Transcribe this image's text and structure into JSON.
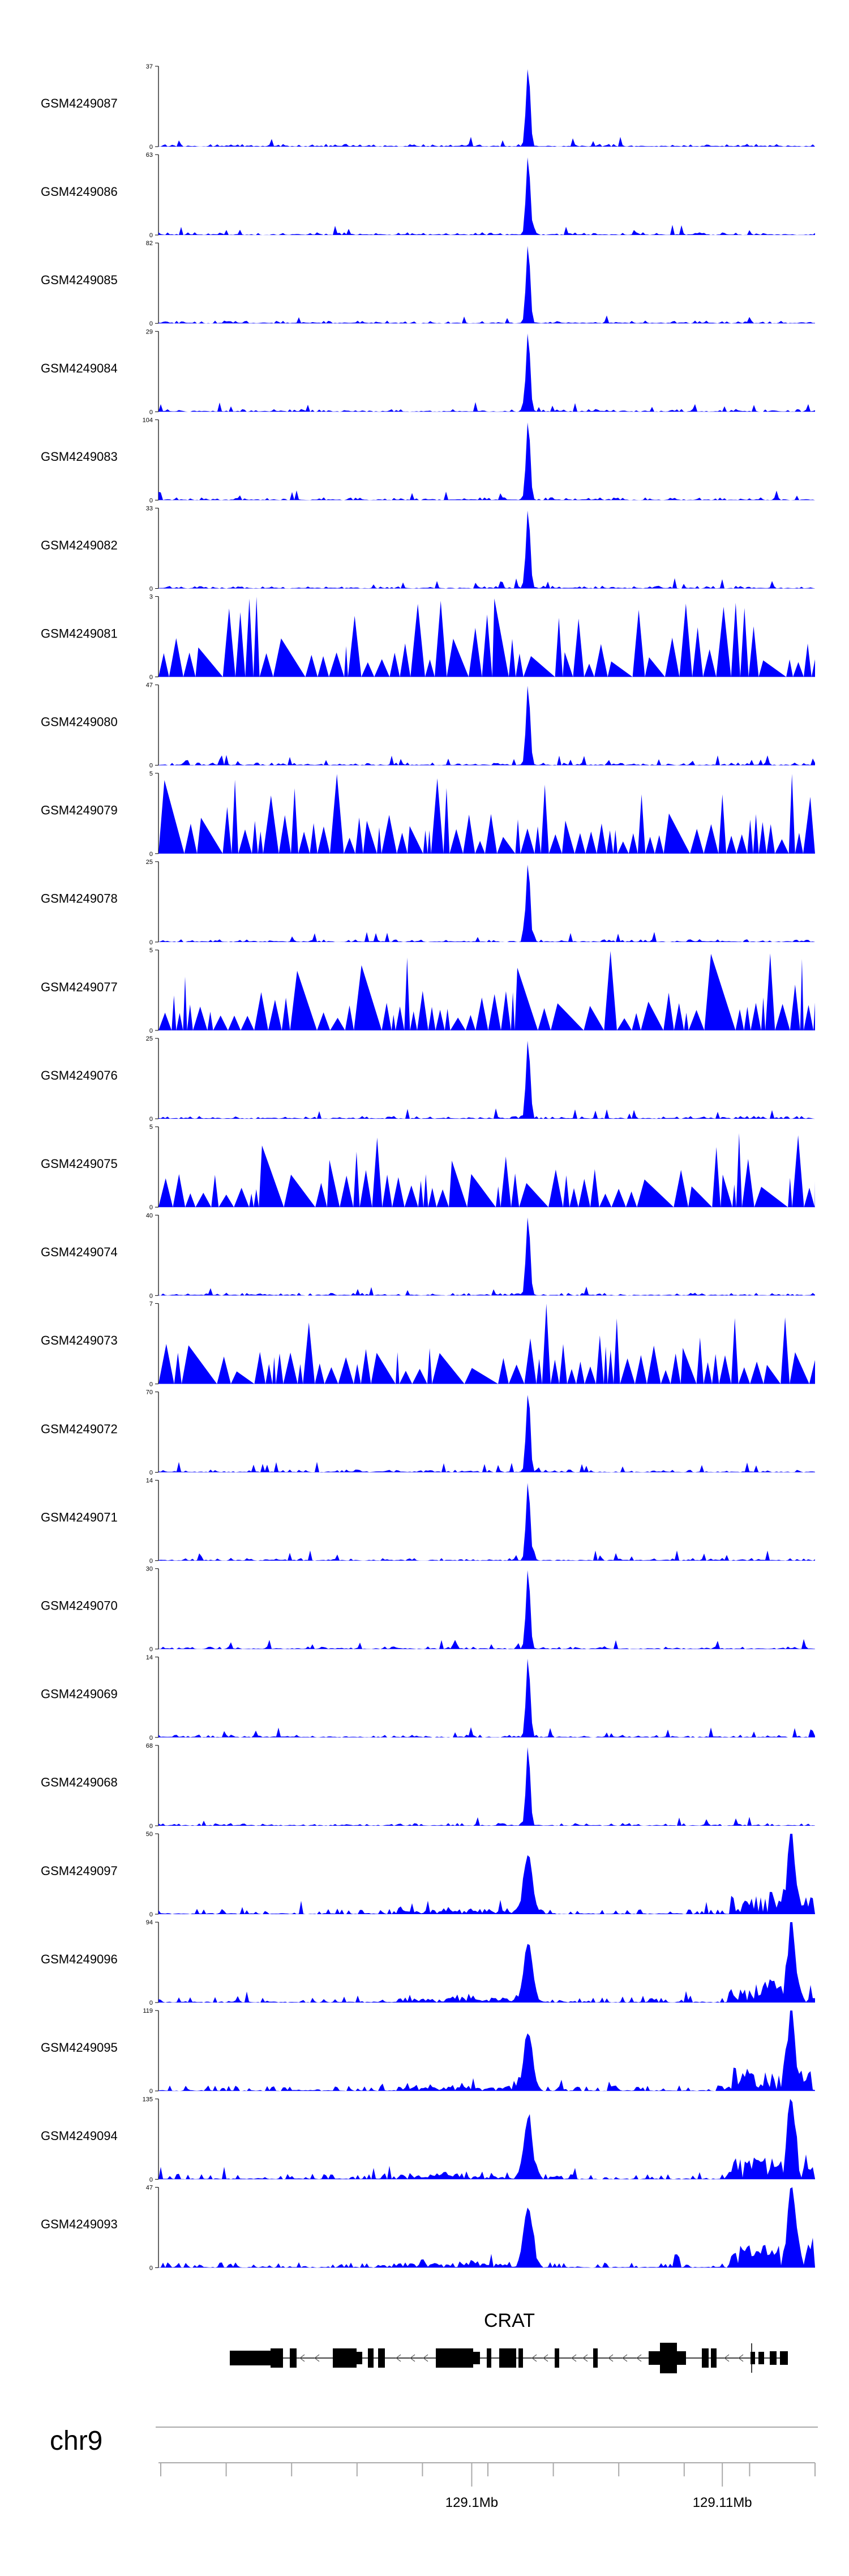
{
  "chart_data": {
    "type": "area",
    "genome_region": {
      "chromosome": "chr9",
      "start_mb": 129.0875,
      "end_mb": 129.1137,
      "axis_ticks": [
        {
          "value_mb": 129.1,
          "label": "129.1Mb"
        },
        {
          "value_mb": 129.11,
          "label": "129.11Mb"
        }
      ]
    },
    "series_color": "#0000ff",
    "tracks": [
      {
        "name": "GSM4249087",
        "ymax": 37,
        "profile": "peak"
      },
      {
        "name": "GSM4249086",
        "ymax": 63,
        "profile": "peak"
      },
      {
        "name": "GSM4249085",
        "ymax": 82,
        "profile": "peak"
      },
      {
        "name": "GSM4249084",
        "ymax": 29,
        "profile": "peak"
      },
      {
        "name": "GSM4249083",
        "ymax": 104,
        "profile": "peak"
      },
      {
        "name": "GSM4249082",
        "ymax": 33,
        "profile": "peak"
      },
      {
        "name": "GSM4249081",
        "ymax": 3,
        "profile": "noise"
      },
      {
        "name": "GSM4249080",
        "ymax": 47,
        "profile": "peak"
      },
      {
        "name": "GSM4249079",
        "ymax": 5,
        "profile": "noise"
      },
      {
        "name": "GSM4249078",
        "ymax": 25,
        "profile": "peak"
      },
      {
        "name": "GSM4249077",
        "ymax": 5,
        "profile": "noise"
      },
      {
        "name": "GSM4249076",
        "ymax": 25,
        "profile": "peak"
      },
      {
        "name": "GSM4249075",
        "ymax": 5,
        "profile": "noise"
      },
      {
        "name": "GSM4249074",
        "ymax": 40,
        "profile": "peak"
      },
      {
        "name": "GSM4249073",
        "ymax": 7,
        "profile": "noise"
      },
      {
        "name": "GSM4249072",
        "ymax": 70,
        "profile": "peak"
      },
      {
        "name": "GSM4249071",
        "ymax": 14,
        "profile": "peak"
      },
      {
        "name": "GSM4249070",
        "ymax": 30,
        "profile": "peak"
      },
      {
        "name": "GSM4249069",
        "ymax": 14,
        "profile": "peak"
      },
      {
        "name": "GSM4249068",
        "ymax": 68,
        "profile": "peak"
      },
      {
        "name": "GSM4249097",
        "ymax": 50,
        "profile": "broad"
      },
      {
        "name": "GSM4249096",
        "ymax": 94,
        "profile": "broad"
      },
      {
        "name": "GSM4249095",
        "ymax": 119,
        "profile": "broad"
      },
      {
        "name": "GSM4249094",
        "ymax": 135,
        "profile": "broad"
      },
      {
        "name": "GSM4249093",
        "ymax": 47,
        "profile": "broad"
      }
    ],
    "gene": {
      "name": "CRAT",
      "strand": "-",
      "start_mb": 129.0897,
      "end_mb": 129.1126
    }
  }
}
